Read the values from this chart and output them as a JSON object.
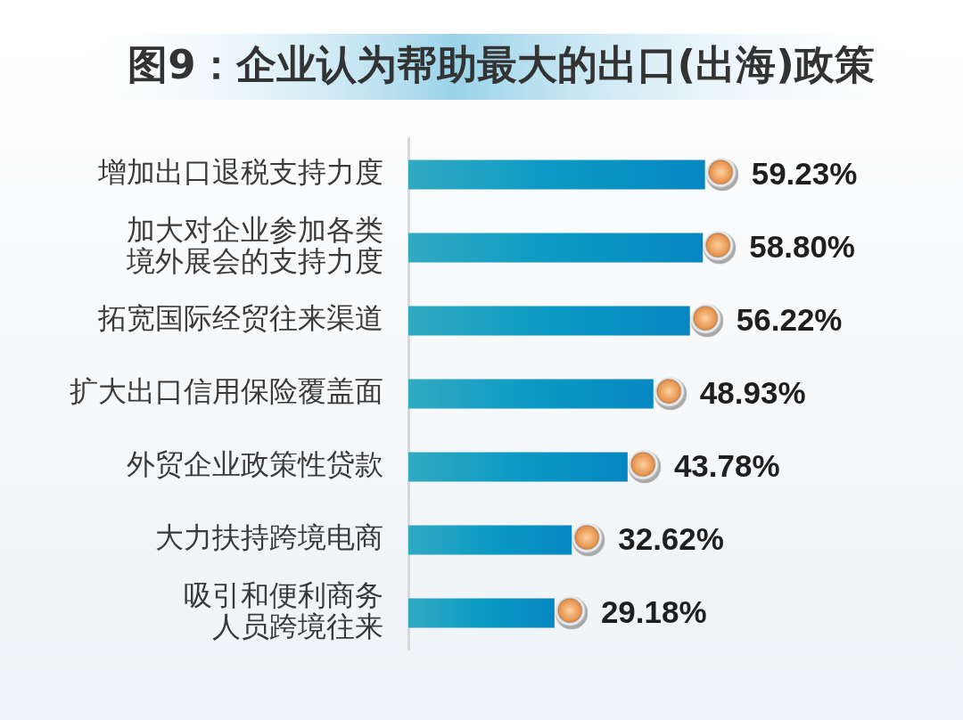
{
  "chart_data": {
    "type": "bar",
    "orientation": "horizontal",
    "title": "图9：企业认为帮助最大的出口(出海)政策",
    "categories": [
      "增加出口退税支持力度",
      "加大对企业参加各类境外展会的支持力度",
      "拓宽国际经贸往来渠道",
      "扩大出口信用保险覆盖面",
      "外贸企业政策性贷款",
      "大力扶持跨境电商",
      "吸引和便利商务人员跨境往来"
    ],
    "values": [
      59.23,
      58.8,
      56.22,
      48.93,
      43.78,
      32.62,
      29.18
    ],
    "value_labels": [
      "59.23%",
      "58.80%",
      "56.22%",
      "48.93%",
      "43.78%",
      "32.62%",
      "29.18%"
    ],
    "color": "#0a9ac4",
    "marker": "circle"
  }
}
